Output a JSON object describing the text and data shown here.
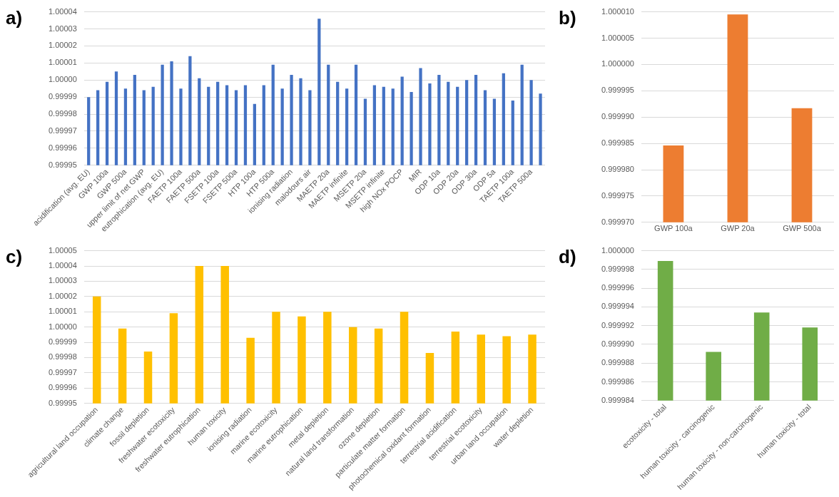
{
  "chart_data": [
    {
      "type": "bar",
      "title": "a)",
      "color": "#4472c4",
      "grid": "y",
      "categories": [
        "acidification (avg. EU)",
        null,
        "GWP 100a",
        null,
        "GWP 500a",
        null,
        "upper limit of net GWP",
        null,
        "eutrophication (avg. EU)",
        null,
        "FAETP 100a",
        null,
        "FAETP 500a",
        null,
        "FSETP 100a",
        null,
        "FSETP 500a",
        null,
        "HTP 100a",
        null,
        "HTP 500a",
        null,
        "ionising radiation",
        null,
        "malodours air",
        null,
        "MAETP 20a",
        null,
        "MAETP infinite",
        null,
        "MSETP 20a",
        null,
        "MSETP infinite",
        null,
        "high NOx POCP",
        null,
        "MIR",
        null,
        "ODP 10a",
        null,
        "ODP 20a",
        null,
        "ODP 30a",
        null,
        "ODP 5a",
        null,
        "TAETP 100a",
        null,
        "TAETP 500a",
        null
      ],
      "values": [
        0.99999,
        0.999994,
        0.999999,
        1.000005,
        0.999995,
        1.000003,
        0.999994,
        0.999996,
        1.000009,
        1.000011,
        0.999995,
        1.000014,
        1.000001,
        0.999996,
        0.999999,
        0.999997,
        0.999994,
        0.999997,
        0.999986,
        0.999997,
        1.000009,
        0.999995,
        1.000003,
        1.000001,
        0.999994,
        1.000036,
        1.000009,
        0.999999,
        0.999995,
        1.000009,
        0.999989,
        0.999997,
        0.999996,
        0.999995,
        1.000002,
        0.999993,
        1.000007,
        0.999998,
        1.000003,
        0.999999,
        0.999996,
        1.0,
        1.000003,
        0.999994,
        0.999989,
        1.000004,
        0.999988,
        1.000009,
        1.0,
        0.999992
      ],
      "ylim": [
        0.99995,
        1.00004
      ],
      "yticks": [
        {
          "value": 0.99995,
          "label": "0.99995"
        },
        {
          "value": 0.99996,
          "label": "0.99996"
        },
        {
          "value": 0.99997,
          "label": "0.99997"
        },
        {
          "value": 0.99998,
          "label": "0.99998"
        },
        {
          "value": 0.99999,
          "label": "0.99999"
        },
        {
          "value": 1.0,
          "label": "1.00000"
        },
        {
          "value": 1.00001,
          "label": "1.00001"
        },
        {
          "value": 1.00002,
          "label": "1.00002"
        },
        {
          "value": 1.00003,
          "label": "1.00003"
        },
        {
          "value": 1.00004,
          "label": "1.00004"
        }
      ]
    },
    {
      "type": "bar",
      "title": "b)",
      "color": "#ed7d31",
      "grid": "y",
      "categories": [
        "GWP 100a",
        "GWP 20a",
        "GWP 500a"
      ],
      "values": [
        0.9999846,
        1.0000095,
        0.9999917
      ],
      "ylim": [
        0.99997,
        1.00001
      ],
      "yticks": [
        {
          "value": 0.99997,
          "label": "0.999970"
        },
        {
          "value": 0.999975,
          "label": "0.999975"
        },
        {
          "value": 0.99998,
          "label": "0.999980"
        },
        {
          "value": 0.999985,
          "label": "0.999985"
        },
        {
          "value": 0.99999,
          "label": "0.999990"
        },
        {
          "value": 0.999995,
          "label": "0.999995"
        },
        {
          "value": 1.0,
          "label": "1.000000"
        },
        {
          "value": 1.000005,
          "label": "1.000005"
        },
        {
          "value": 1.00001,
          "label": "1.000010"
        }
      ]
    },
    {
      "type": "bar",
      "title": "c)",
      "color": "#ffc000",
      "grid": "y",
      "categories": [
        "agricultural land occupation",
        "climate change",
        "fossil depletion",
        "freshwater ecotoxicity",
        "freshwater eutrophication",
        "human toxicity",
        "ionising radiation",
        "marine ecotoxicity",
        "marine eutrophication",
        "metal depletion",
        "natural land transformation",
        "ozone depletion",
        "particulate matter formation",
        "photochemical oxidant formation",
        "terrestrial acidification",
        "terrestrial ecotoxicity",
        "urban land occupation",
        "water depletion"
      ],
      "values": [
        1.00002,
        0.999999,
        0.999984,
        1.000009,
        1.00004,
        1.00004,
        0.999993,
        1.00001,
        1.000007,
        1.00001,
        1.0,
        0.999999,
        1.00001,
        0.999983,
        0.999997,
        0.999995,
        0.999994,
        0.999995
      ],
      "ylim": [
        0.99995,
        1.00005
      ],
      "yticks": [
        {
          "value": 0.99995,
          "label": "0.99995"
        },
        {
          "value": 0.99996,
          "label": "0.99996"
        },
        {
          "value": 0.99997,
          "label": "0.99997"
        },
        {
          "value": 0.99998,
          "label": "0.99998"
        },
        {
          "value": 0.99999,
          "label": "0.99999"
        },
        {
          "value": 1.0,
          "label": "1.00000"
        },
        {
          "value": 1.00001,
          "label": "1.00001"
        },
        {
          "value": 1.00002,
          "label": "1.00002"
        },
        {
          "value": 1.00003,
          "label": "1.00003"
        },
        {
          "value": 1.00004,
          "label": "1.00004"
        },
        {
          "value": 1.00005,
          "label": "1.00005"
        }
      ]
    },
    {
      "type": "bar",
      "title": "d)",
      "color": "#70ad47",
      "grid": "y",
      "categories": [
        "ecotoxicity - total",
        "human toxicity - carcinogenic",
        "human toxicity - non-carcinogenic",
        "human toxicity - total"
      ],
      "values": [
        0.9999989,
        0.9999892,
        0.9999934,
        0.9999918
      ],
      "ylim": [
        0.999984,
        1.0
      ],
      "yticks": [
        {
          "value": 0.999984,
          "label": "0.999984"
        },
        {
          "value": 0.999986,
          "label": "0.999986"
        },
        {
          "value": 0.999988,
          "label": "0.999988"
        },
        {
          "value": 0.99999,
          "label": "0.999990"
        },
        {
          "value": 0.999992,
          "label": "0.999992"
        },
        {
          "value": 0.999994,
          "label": "0.999994"
        },
        {
          "value": 0.999996,
          "label": "0.999996"
        },
        {
          "value": 0.999998,
          "label": "0.999998"
        },
        {
          "value": 1.0,
          "label": "1.000000"
        }
      ]
    }
  ]
}
